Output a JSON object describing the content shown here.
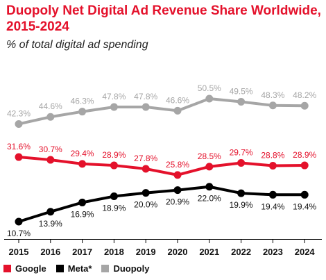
{
  "chart_data": {
    "type": "line",
    "title": "Duopoly Net Digital Ad Revenue Share Worldwide, 2015-2024",
    "subtitle": "% of total digital ad spending",
    "categories": [
      "2015",
      "2016",
      "2017",
      "2018",
      "2019",
      "2020",
      "2021",
      "2022",
      "2023",
      "2024"
    ],
    "series": [
      {
        "name": "Google",
        "color": "#e4112b",
        "values": [
          31.6,
          30.7,
          29.4,
          28.9,
          27.8,
          25.8,
          28.5,
          29.7,
          28.8,
          28.9
        ],
        "labels": [
          "31.6%",
          "30.7%",
          "29.4%",
          "28.9%",
          "27.8%",
          "25.8%",
          "28.5%",
          "29.7%",
          "28.8%",
          "28.9%"
        ]
      },
      {
        "name": "Meta*",
        "color": "#000000",
        "values": [
          10.7,
          13.9,
          16.9,
          18.9,
          20.0,
          20.9,
          22.0,
          19.9,
          19.4,
          19.4
        ],
        "labels": [
          "10.7%",
          "13.9%",
          "16.9%",
          "18.9%",
          "20.0%",
          "20.9%",
          "22.0%",
          "19.9%",
          "19.4%",
          "19.4%"
        ]
      },
      {
        "name": "Duopoly",
        "color": "#a6a6a6",
        "values": [
          42.3,
          44.6,
          46.3,
          47.8,
          47.8,
          46.6,
          50.5,
          49.5,
          48.3,
          48.2
        ],
        "labels": [
          "42.3%",
          "44.6%",
          "46.3%",
          "47.8%",
          "47.8%",
          "46.6%",
          "50.5%",
          "49.5%",
          "48.3%",
          "48.2%"
        ]
      }
    ],
    "grid": false,
    "legend": "bottom-left"
  }
}
